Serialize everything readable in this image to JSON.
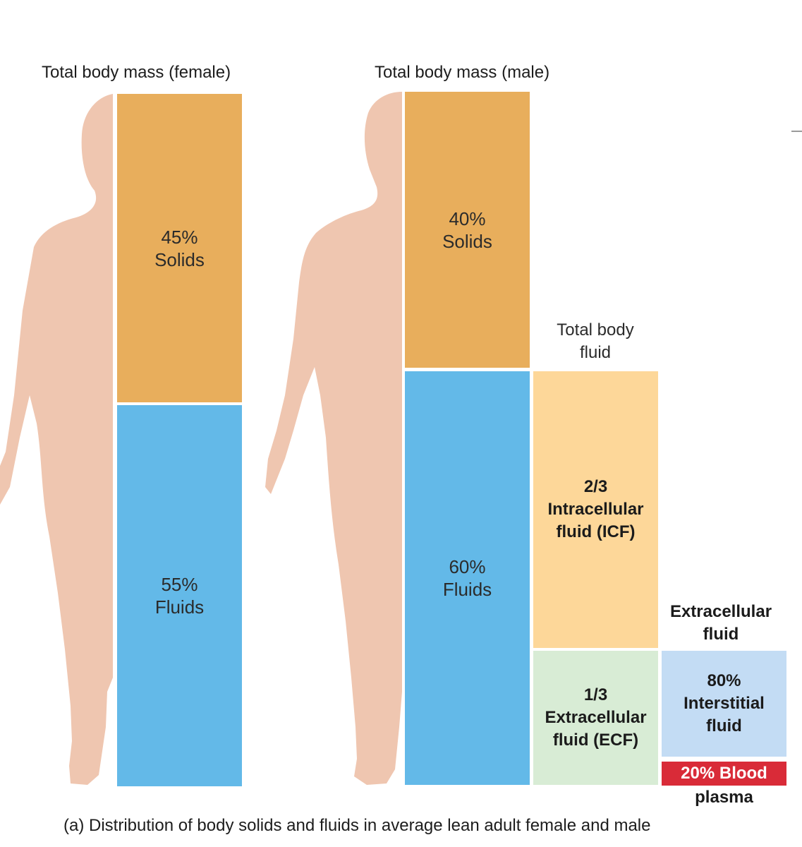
{
  "female": {
    "title": "Total body mass (female)",
    "solids_pct": "45%",
    "solids_label": "Solids",
    "fluids_pct": "55%",
    "fluids_label": "Fluids"
  },
  "male": {
    "title": "Total body mass (male)",
    "solids_pct": "40%",
    "solids_label": "Solids",
    "fluids_pct": "60%",
    "fluids_label": "Fluids"
  },
  "total_body_fluid": {
    "line1": "Total body",
    "line2": "fluid"
  },
  "icf": {
    "fraction": "2/3",
    "line1": "Intracellular",
    "line2": "fluid (ICF)"
  },
  "ecf": {
    "fraction": "1/3",
    "line1": "Extracellular",
    "line2": "fluid (ECF)"
  },
  "extracellular_fluid": {
    "line1": "Extracellular",
    "line2": "fluid"
  },
  "interstitial": {
    "pct": "80%",
    "line1": "Interstitial",
    "line2": "fluid"
  },
  "plasma": {
    "box_text": "20% Blood",
    "line2": "plasma"
  },
  "caption": "(a) Distribution of body solids and fluids in average lean adult female and male",
  "colors": {
    "body": "#efc6b0",
    "solids": "#e8ae5c",
    "fluids": "#63b9e8",
    "icf": "#fdd799",
    "ecf": "#d8ecd5",
    "interstitial": "#c3dcf4",
    "plasma": "#d92b38"
  }
}
